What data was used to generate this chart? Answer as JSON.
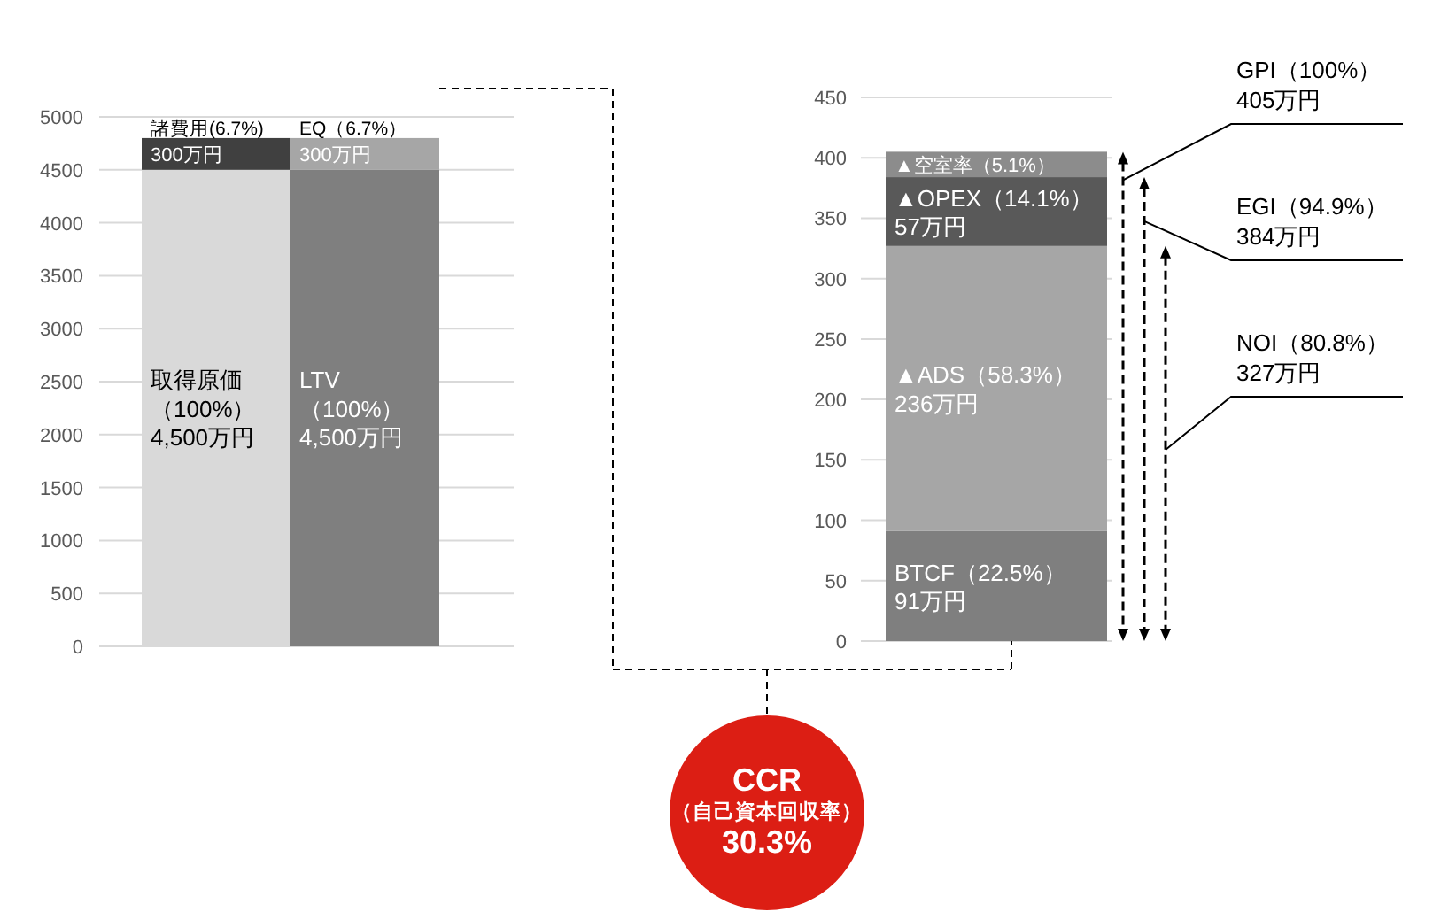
{
  "chart_data": [
    {
      "type": "bar",
      "stacked": true,
      "categories": [
        null,
        null
      ],
      "series": [
        {
          "name": "取得原価（100%）",
          "color": "#d9d9d9",
          "values": [
            4500,
            null
          ],
          "value_labels": [
            "4,500万円",
            null
          ]
        },
        {
          "name": "LTV（100%）",
          "color": "#7f7f7f",
          "values": [
            null,
            4500
          ],
          "value_labels": [
            null,
            "4,500万円"
          ]
        },
        {
          "name": "諸費用(6.7%)",
          "color": "#404040",
          "values": [
            300,
            null
          ],
          "value_labels": [
            "300万円",
            null
          ]
        },
        {
          "name": "EQ（6.7%）",
          "color": "#a6a6a6",
          "values": [
            null,
            300
          ],
          "value_labels": [
            null,
            "300万円"
          ]
        }
      ],
      "ylim": [
        0,
        5000
      ],
      "yticks": [
        0,
        500,
        1000,
        1500,
        2000,
        2500,
        3000,
        3500,
        4000,
        4500,
        5000
      ],
      "grid": "y",
      "tick_labels": "y"
    },
    {
      "type": "bar",
      "stacked": true,
      "categories": [
        null
      ],
      "series": [
        {
          "name": "BTCF（22.5%）",
          "color": "#7f7f7f",
          "values": [
            91
          ],
          "value_labels": [
            "91万円"
          ]
        },
        {
          "name": "▲ADS（58.3%）",
          "color": "#a6a6a6",
          "values": [
            236
          ],
          "value_labels": [
            "236万円"
          ]
        },
        {
          "name": "▲OPEX（14.1%）",
          "color": "#595959",
          "values": [
            57
          ],
          "value_labels": [
            "57万円"
          ]
        },
        {
          "name": "▲空室率（5.1%）",
          "color": "#8c8c8c",
          "values": [
            21
          ]
        }
      ],
      "ylim": [
        0,
        450
      ],
      "yticks": [
        0,
        50,
        100,
        150,
        200,
        250,
        300,
        350,
        400,
        450
      ],
      "grid": "y",
      "tick_labels": "y",
      "annotations": [
        "GPI（100%）\n405万円",
        "EGI（94.9%）\n384万円",
        "NOI（80.8%）\n327万円",
        "CCR\n（自己資本回収率）\n30.3%"
      ]
    }
  ]
}
